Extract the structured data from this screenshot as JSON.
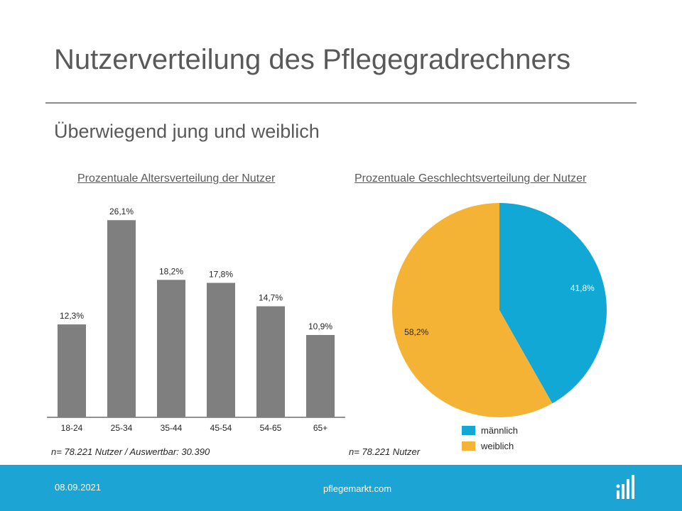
{
  "title": "Nutzerverteilung des Pflegegradrechners",
  "subtitle": "Überwiegend jung und weiblich",
  "chart_data": [
    {
      "type": "bar",
      "title": "Prozentuale Altersverteilung der Nutzer",
      "categories": [
        "18-24",
        "25-34",
        "35-44",
        "45-54",
        "54-65",
        "65+"
      ],
      "values": [
        12.3,
        26.1,
        18.2,
        17.8,
        14.7,
        10.9
      ],
      "data_labels": [
        "12,3%",
        "26,1%",
        "18,2%",
        "17,8%",
        "14,7%",
        "10,9%"
      ],
      "ylim": [
        0,
        28
      ],
      "color": "#7f7f7f",
      "note": "n= 78.221 Nutzer / Auswertbar: 30.390"
    },
    {
      "type": "pie",
      "title": "Prozentuale Geschlechtsverteilung der Nutzer",
      "slices": [
        {
          "label": "männlich",
          "value": 41.8,
          "value_label": "41,8%",
          "color": "#12a8d6"
        },
        {
          "label": "weiblich",
          "value": 58.2,
          "value_label": "58,2%",
          "color": "#f5b335"
        }
      ],
      "legend": "bottom",
      "note": "n= 78.221 Nutzer"
    }
  ],
  "footer": {
    "date": "08.09.2021",
    "site": "pflegemarkt.com",
    "logo_icon": "bars-logo-icon",
    "color": "#1ba4d4"
  }
}
